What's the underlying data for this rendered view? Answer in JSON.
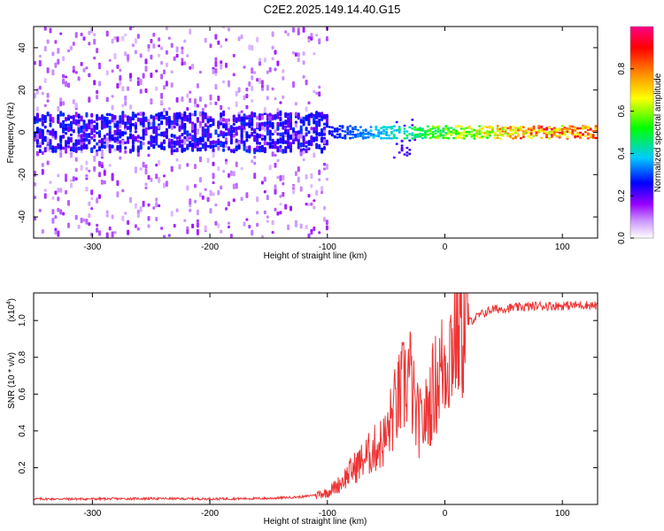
{
  "title": "C2E2.2025.149.14.40.G15",
  "chart_data": [
    {
      "type": "heatmap",
      "name": "spectrogram",
      "xlabel": "Height of straight line (km)",
      "ylabel": "Frequency (Hz)",
      "xlim": [
        -350,
        130
      ],
      "ylim": [
        -50,
        50
      ],
      "xticks": [
        -300,
        -200,
        -100,
        0,
        100
      ],
      "xtick_labels": [
        "-300",
        "-200",
        "-100",
        "0",
        "100"
      ],
      "yticks": [
        -40,
        -20,
        0,
        20,
        40
      ],
      "ytick_labels": [
        "-40",
        "-20",
        "0",
        "20",
        "40"
      ],
      "colorbar": {
        "label": "Normalized spectral amplitude",
        "range": [
          0,
          1
        ],
        "ticks": [
          0.0,
          0.2,
          0.4,
          0.6,
          0.8
        ],
        "tick_labels": [
          "0.0",
          "0.2",
          "0.4",
          "0.6",
          "0.8"
        ],
        "colors": [
          "#ffffff",
          "#9900ff",
          "#0000ff",
          "#00ccff",
          "#00ff00",
          "#ffff00",
          "#ff8800",
          "#ff0000",
          "#ff0088"
        ]
      },
      "description_points": {
        "noise_band_until_km": -100,
        "signal_band_center_hz": 0,
        "signal_band_halfwidth_hz": 5
      }
    },
    {
      "type": "line",
      "name": "snr",
      "color": "#ee3333",
      "xlabel": "Height of straight line (km)",
      "ylabel": "SNR (10 * v/v)",
      "yscale_label": "(x10",
      "yscale_exp": "4",
      "yscale_close": ")",
      "xlim": [
        -350,
        130
      ],
      "ylim": [
        0,
        11500
      ],
      "xticks": [
        -300,
        -200,
        -100,
        0,
        100
      ],
      "xtick_labels": [
        "-300",
        "-200",
        "-100",
        "0",
        "100"
      ],
      "yticks": [
        2000,
        4000,
        6000,
        8000,
        10000
      ],
      "ytick_labels": [
        "0.2",
        "0.4",
        "0.6",
        "0.8",
        "1.0"
      ],
      "x": [
        -350,
        -300,
        -250,
        -200,
        -150,
        -120,
        -100,
        -90,
        -80,
        -70,
        -60,
        -50,
        -45,
        -40,
        -35,
        -30,
        -25,
        -20,
        -15,
        -10,
        -5,
        0,
        5,
        10,
        15,
        20,
        25,
        30,
        40,
        60,
        80,
        100,
        120,
        130
      ],
      "y": [
        300,
        300,
        320,
        300,
        330,
        420,
        650,
        1100,
        1800,
        2400,
        3000,
        3600,
        4800,
        5600,
        6400,
        7200,
        4800,
        4300,
        5000,
        6200,
        7000,
        7800,
        8600,
        9600,
        9700,
        9900,
        10100,
        10300,
        10600,
        10700,
        10800,
        10800,
        10850,
        10800
      ]
    }
  ]
}
